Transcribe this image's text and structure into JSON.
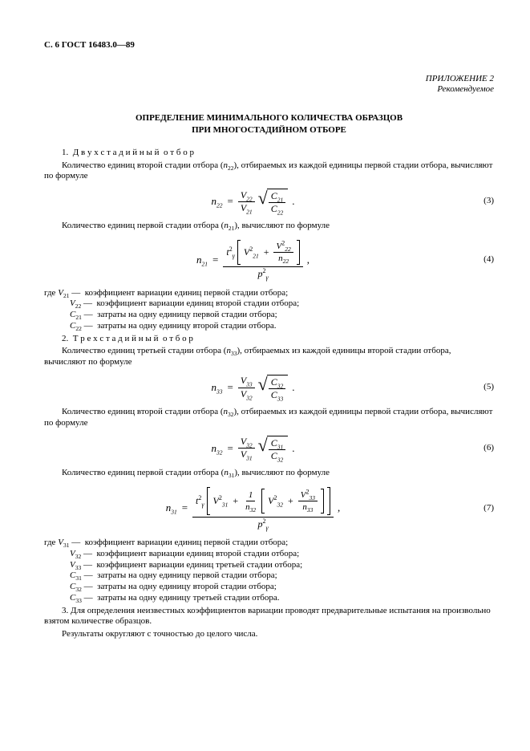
{
  "header": "С. 6 ГОСТ 16483.0—89",
  "appendix": {
    "line1": "ПРИЛОЖЕНИЕ 2",
    "line2": "Рекомендуемое"
  },
  "title": {
    "l1": "ОПРЕДЕЛЕНИЕ МИНИМАЛЬНОГО КОЛИЧЕСТВА ОБРАЗЦОВ",
    "l2": "ПРИ МНОГОСТАДИЙНОМ ОТБОРЕ"
  },
  "s1": {
    "h": "1. Д в у х с т а д и й н ы й о т б о р",
    "p1a": "Количество единиц второй стадии отбора (",
    "p1n": "n",
    "p1s": "22",
    "p1b": "), отбираемых из каждой единицы первой стадии отбора, вычисляют по формуле",
    "p2a": "Количество единиц первой стадии отбора (",
    "p2n": "n",
    "p2s": "21",
    "p2b": "), вычисляют по формуле"
  },
  "eqno": {
    "e3": "(3)",
    "e4": "(4)",
    "e5": "(5)",
    "e6": "(6)",
    "e7": "(7)"
  },
  "w1": {
    "lead": "где ",
    "l1": " — коэффициент вариации единиц первой стадии отбора;",
    "l2": " — коэффициент вариации единиц второй стадии отбора;",
    "l3": " — затраты на одну единицу первой стадии отбора;",
    "l4": " — затраты на одну единицу второй стадии отбора."
  },
  "s2": {
    "h": "2. Т р е х с т а д и й н ы й о т б о р",
    "p1a": "Количество единиц третьей стадии отбора (",
    "p1s": "33",
    "p1b": "), отбираемых из каждой единицы второй стадии отбора, вычисляют по формуле",
    "p2a": "Количество единиц второй стадии отбора (",
    "p2s": "32",
    "p2b": "), отбираемых из каждой единицы первой стадии отбора, вычисляют по формуле",
    "p3a": "Количество единиц первой стадии отбора (",
    "p3s": "31",
    "p3b": "), вычисляют по формуле"
  },
  "w2": {
    "lead": "где ",
    "l1": " — коэффициент вариации единиц первой стадии отбора;",
    "l2": " — коэффициент вариации единиц второй стадии отбора;",
    "l3": " — коэффициент вариации единиц третьей стадии отбора;",
    "l4": " — затраты на одну единицу первой стадии отбора;",
    "l5": " — затраты на одну единицу второй стадии отбора;",
    "l6": " — затраты на одну единицу третьей стадии отбора."
  },
  "s3": {
    "p1": "3. Для определения неизвестных коэффициентов вариации проводят предварительные испытания на произвольно взятом количестве образцов.",
    "p2": "Результаты округляют с точностью до целого числа."
  },
  "sym": {
    "n": "n",
    "V": "V",
    "C": "C",
    "t": "t",
    "p": "p",
    "s21": "21",
    "s22": "22",
    "s31": "31",
    "s32": "32",
    "s33": "33",
    "gamma": "γ",
    "two": "2",
    "one": "1"
  }
}
